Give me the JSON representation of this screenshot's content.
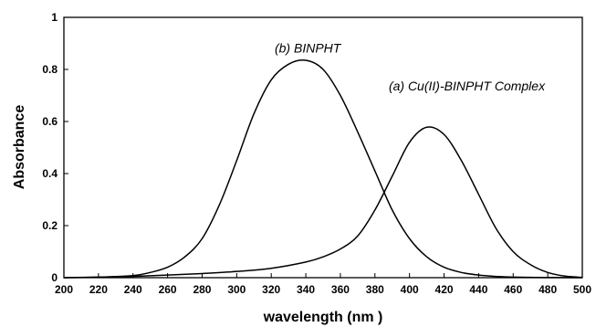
{
  "chart_data": {
    "type": "line",
    "xlabel": "wavelength (nm )",
    "ylabel": "Absorbance",
    "xlim": [
      200,
      500
    ],
    "ylim": [
      0,
      1
    ],
    "xticks": [
      200,
      220,
      240,
      260,
      280,
      300,
      320,
      340,
      360,
      380,
      400,
      420,
      440,
      460,
      480,
      500
    ],
    "yticks": [
      0,
      0.2,
      0.4,
      0.6,
      0.8,
      1
    ],
    "grid": false,
    "legend": "none",
    "line_color": "#000000",
    "annotations": [
      {
        "text": "(b) BINPHT",
        "x": 322,
        "y": 0.865
      },
      {
        "text": "(a) Cu(II)-BINPHT Complex",
        "x": 388,
        "y": 0.72
      }
    ],
    "series": [
      {
        "x": [
          200,
          220,
          240,
          250,
          260,
          270,
          280,
          290,
          300,
          310,
          320,
          330,
          340,
          350,
          360,
          370,
          380,
          390,
          400,
          410,
          420,
          430,
          440,
          450,
          460,
          480,
          500
        ],
        "y": [
          0,
          0.002,
          0.008,
          0.02,
          0.04,
          0.08,
          0.15,
          0.28,
          0.45,
          0.63,
          0.76,
          0.82,
          0.835,
          0.8,
          0.7,
          0.56,
          0.41,
          0.26,
          0.15,
          0.08,
          0.04,
          0.02,
          0.01,
          0.005,
          0.002,
          0.0005,
          0
        ]
      },
      {
        "x": [
          200,
          220,
          240,
          260,
          280,
          300,
          320,
          340,
          350,
          360,
          370,
          380,
          390,
          400,
          410,
          420,
          430,
          440,
          450,
          460,
          470,
          480,
          490,
          500
        ],
        "y": [
          0,
          0.002,
          0.005,
          0.01,
          0.016,
          0.024,
          0.036,
          0.06,
          0.08,
          0.11,
          0.16,
          0.26,
          0.39,
          0.52,
          0.578,
          0.55,
          0.45,
          0.32,
          0.19,
          0.1,
          0.05,
          0.02,
          0.006,
          0.001
        ]
      }
    ]
  }
}
